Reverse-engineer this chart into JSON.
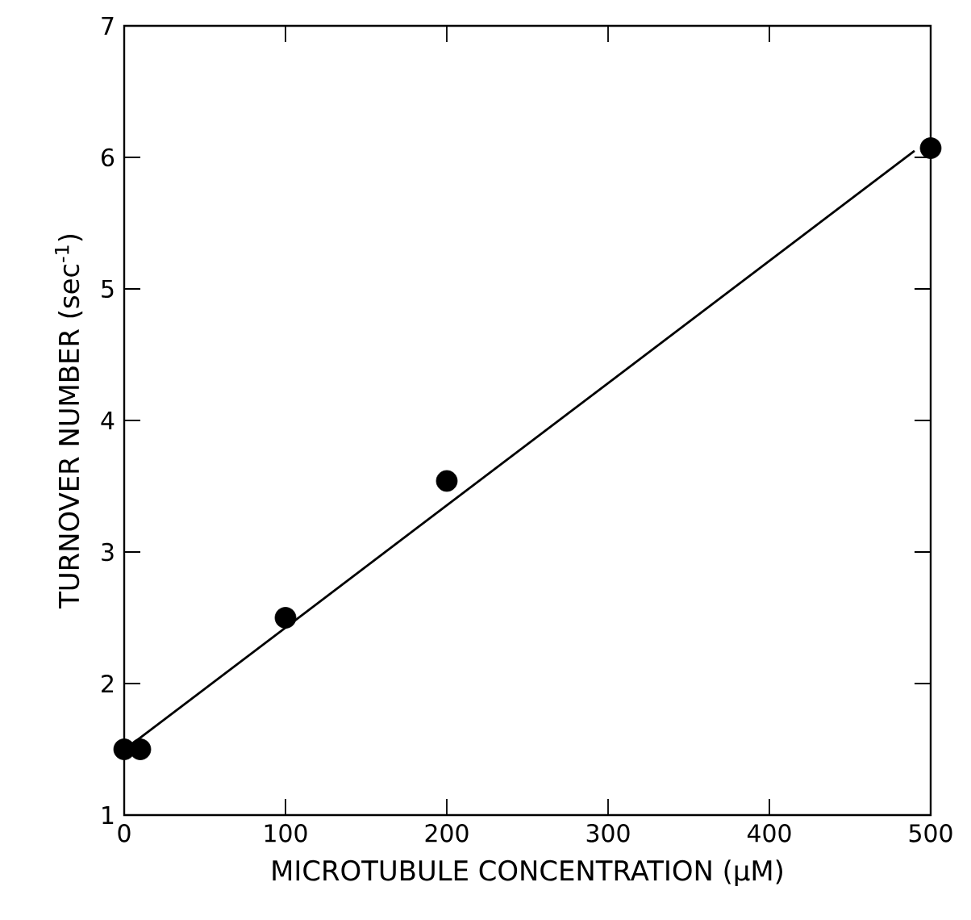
{
  "chart_data": {
    "type": "scatter",
    "xlabel": "MICROTUBULE CONCENTRATION (μM)",
    "ylabel": "TURNOVER NUMBER (sec$^{-1}$)",
    "xlim": [
      0,
      500
    ],
    "ylim": [
      1,
      7
    ],
    "xticks": [
      0,
      100,
      200,
      300,
      400,
      500
    ],
    "yticks": [
      1,
      2,
      3,
      4,
      5,
      6,
      7
    ],
    "marker": "circle",
    "grid": false,
    "series": [
      {
        "color": "#000000",
        "x": [
          0,
          10,
          100,
          200,
          500
        ],
        "values": [
          1.5,
          1.5,
          2.5,
          3.54,
          6.07
        ]
      },
      {
        "type": "line",
        "color": "#000000",
        "marker": "none",
        "line_style": "solid",
        "x": [
          7,
          490
        ],
        "values": [
          1.56,
          6.05
        ]
      }
    ]
  }
}
